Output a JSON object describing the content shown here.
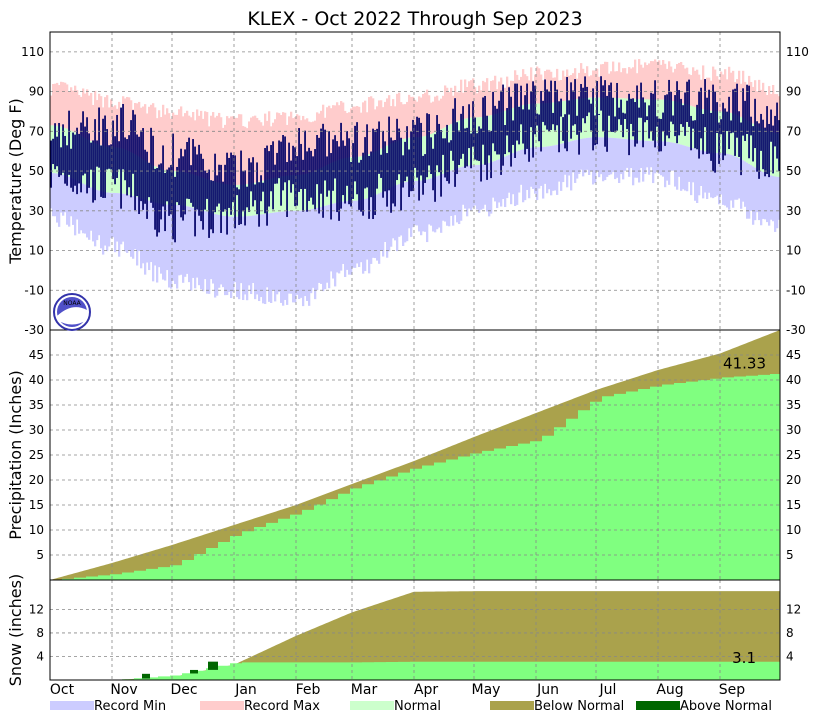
{
  "title": "KLEX - Oct 2022 Through Sep 2023",
  "colors": {
    "record_min": "#ccccff",
    "record_max": "#ffcccc",
    "normal": "#ccffcc",
    "observed_temp": "#000066",
    "below_normal": "#aaa24c",
    "above_normal": "#006600",
    "observed_total": "#80ff80",
    "grid": "#888888"
  },
  "legend": [
    {
      "label": "Record Min",
      "color": "#ccccff"
    },
    {
      "label": "Record Max",
      "color": "#ffcccc"
    },
    {
      "label": "Normal",
      "color": "#ccffcc"
    },
    {
      "label": "Below Normal",
      "color": "#aaa24c"
    },
    {
      "label": "Above Normal",
      "color": "#006600"
    }
  ],
  "logo_text": "NOAA",
  "chart_data": [
    {
      "type": "area",
      "panel": "temperature",
      "ylabel": "Temperature (Deg F)",
      "ylim": [
        -30,
        120
      ],
      "yticks": [
        110,
        90,
        70,
        50,
        30,
        10,
        -10,
        -30
      ],
      "x_month_labels": [
        "Oct",
        "Nov",
        "Dec",
        "Jan",
        "Feb",
        "Mar",
        "Apr",
        "May",
        "Jun",
        "Jul",
        "Aug",
        "Sep"
      ],
      "months": [
        "Oct",
        "Nov",
        "Dec",
        "Jan",
        "Feb",
        "Mar",
        "Apr",
        "May",
        "Jun",
        "Jul",
        "Aug",
        "Sep",
        "Oct"
      ],
      "record_max": [
        92,
        85,
        79,
        75,
        77,
        83,
        87,
        93,
        99,
        101,
        103,
        99,
        91
      ],
      "normal_high": [
        73,
        62,
        50,
        43,
        48,
        57,
        67,
        77,
        84,
        87,
        86,
        80,
        69
      ],
      "normal_low": [
        49,
        39,
        33,
        27,
        30,
        35,
        45,
        53,
        62,
        67,
        65,
        59,
        47
      ],
      "record_min": [
        27,
        12,
        -5,
        -10,
        -15,
        0,
        18,
        30,
        40,
        48,
        47,
        35,
        22
      ],
      "observed_high": [
        70,
        74,
        58,
        50,
        62,
        64,
        68,
        80,
        87,
        88,
        87,
        85,
        80
      ],
      "observed_low": [
        48,
        42,
        25,
        28,
        38,
        35,
        42,
        55,
        65,
        70,
        68,
        60,
        55
      ]
    },
    {
      "type": "area",
      "panel": "precipitation",
      "ylabel": "Precipitation (Inches)",
      "ylim": [
        0,
        50
      ],
      "yticks": [
        45,
        40,
        35,
        30,
        25,
        20,
        15,
        10,
        5
      ],
      "months": [
        "Oct",
        "Nov",
        "Dec",
        "Jan",
        "Feb",
        "Mar",
        "Apr",
        "May",
        "Jun",
        "Jul",
        "Aug",
        "Sep",
        "Oct"
      ],
      "normal_cumulative": [
        0,
        3.4,
        7.0,
        11.0,
        15.0,
        19.2,
        23.8,
        28.6,
        33.4,
        38.0,
        42.0,
        45.3,
        50.0
      ],
      "observed_cumulative": [
        0,
        1.2,
        3.0,
        9.2,
        13.5,
        18.5,
        22.5,
        25.5,
        28.0,
        36.5,
        39.0,
        40.5,
        41.33
      ],
      "final_value_label": "41.33"
    },
    {
      "type": "area",
      "panel": "snow",
      "ylabel": "Snow (inches)",
      "ylim": [
        0,
        17
      ],
      "yticks": [
        12,
        8,
        4
      ],
      "months": [
        "Oct",
        "Nov",
        "Dec",
        "Jan",
        "Feb",
        "Mar",
        "Apr",
        "May",
        "Jun",
        "Jul",
        "Aug",
        "Sep",
        "Oct"
      ],
      "normal_cumulative": [
        0,
        0,
        0.5,
        2.6,
        7.5,
        11.5,
        15.0,
        15.1,
        15.1,
        15.1,
        15.1,
        15.1,
        15.1
      ],
      "observed_cumulative": [
        0,
        0,
        0.8,
        3.0,
        3.0,
        3.0,
        3.1,
        3.1,
        3.1,
        3.1,
        3.1,
        3.1,
        3.1
      ],
      "final_value_label": "3.1"
    }
  ]
}
